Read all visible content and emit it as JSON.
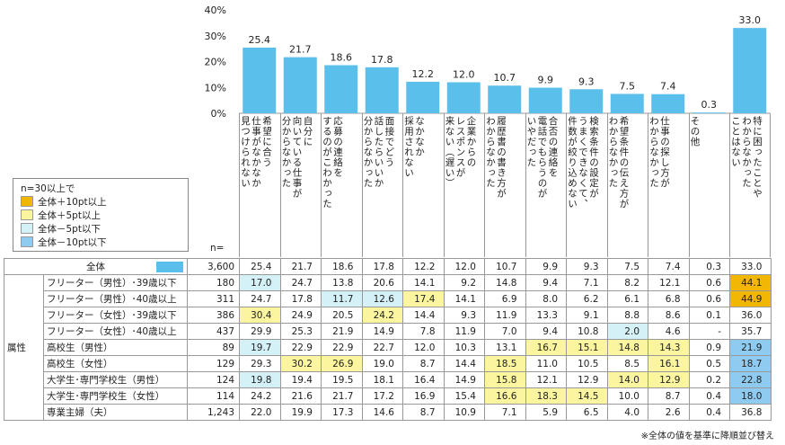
{
  "colors": {
    "bar": "#5BBFEB",
    "plus10": "#F2B705",
    "plus5": "#FBF5A0",
    "minus5": "#D5F1F8",
    "minus10": "#8FCBF1"
  },
  "legend": {
    "title": "n=30以上で",
    "items": [
      {
        "label": "全体＋10pt以上",
        "color_key": "plus10"
      },
      {
        "label": "全体＋5pt以上",
        "color_key": "plus5"
      },
      {
        "label": "全体－5pt以下",
        "color_key": "minus5"
      },
      {
        "label": "全体－10pt以下",
        "color_key": "minus10"
      }
    ]
  },
  "chart_data": {
    "type": "bar",
    "categories": [
      "希望に合う\n仕事がなかなか\n見つけられない",
      "自分に\n向いている仕事が\n分からなかった",
      "応募の連絡を\nするのがこわかった",
      "面接でどう\n話したらいいか\n分からなかった",
      "なかなか\n採用されない",
      "企業からの\nレスポンスが\n来ない（遅い）",
      "履歴書の書き方が\nわからなかった",
      "合否の連絡を\n電話でもらうのが\nいやだった",
      "検索条件の設定が\nうまくできなくて、\n件数が絞り込めない",
      "希望条件の伝え方が\nわからなかった",
      "仕事の探し方が\nわからなかった",
      "その他",
      "特に困ったことや\nわからなかった\nことはない"
    ],
    "values": [
      25.4,
      21.7,
      18.6,
      17.8,
      12.2,
      12.0,
      10.7,
      9.9,
      9.3,
      7.5,
      7.4,
      0.3,
      33.0
    ],
    "ylim": [
      0,
      40
    ],
    "yticks": [
      "0%",
      "10%",
      "20%",
      "30%",
      "40%"
    ],
    "grid": false
  },
  "table": {
    "n_header": "n=",
    "total": {
      "label": "全体",
      "n": "3,600",
      "values": [
        "25.4",
        "21.7",
        "18.6",
        "17.8",
        "12.2",
        "12.0",
        "10.7",
        "9.9",
        "9.3",
        "7.5",
        "7.4",
        "0.3",
        "33.0"
      ]
    },
    "group_label": "属性",
    "rows": [
      {
        "label": "フリーター（男性）･39歳以下",
        "n": "180",
        "values": [
          "17.0",
          "24.7",
          "13.8",
          "20.6",
          "14.1",
          "9.2",
          "14.8",
          "9.4",
          "7.1",
          "8.2",
          "12.1",
          "0.6",
          "44.1"
        ],
        "highlight": [
          "minus5",
          "",
          "",
          "",
          "",
          "",
          "",
          "",
          "",
          "",
          "",
          "",
          "plus10"
        ]
      },
      {
        "label": "フリーター（男性）･40歳以上",
        "n": "311",
        "values": [
          "24.7",
          "17.8",
          "11.7",
          "12.6",
          "17.4",
          "14.1",
          "6.9",
          "8.0",
          "6.2",
          "6.1",
          "6.8",
          "0.6",
          "44.9"
        ],
        "highlight": [
          "",
          "",
          "minus5",
          "minus5",
          "plus5",
          "",
          "",
          "",
          "",
          "",
          "",
          "",
          "plus10"
        ]
      },
      {
        "label": "フリーター（女性）･39歳以下",
        "n": "386",
        "values": [
          "30.4",
          "24.9",
          "20.5",
          "24.2",
          "14.4",
          "9.3",
          "11.9",
          "13.3",
          "9.1",
          "8.8",
          "8.6",
          "0.1",
          "36.0"
        ],
        "highlight": [
          "plus5",
          "",
          "",
          "plus5",
          "",
          "",
          "",
          "",
          "",
          "",
          "",
          "",
          ""
        ]
      },
      {
        "label": "フリーター（女性）･40歳以上",
        "n": "437",
        "values": [
          "29.9",
          "25.3",
          "21.9",
          "14.9",
          "7.8",
          "11.9",
          "7.0",
          "9.4",
          "10.8",
          "2.0",
          "4.6",
          "-",
          "35.7"
        ],
        "highlight": [
          "",
          "",
          "",
          "",
          "",
          "",
          "",
          "",
          "",
          "minus5",
          "",
          "",
          ""
        ]
      },
      {
        "label": "高校生（男性）",
        "n": "89",
        "values": [
          "19.7",
          "22.9",
          "22.9",
          "22.7",
          "12.0",
          "10.3",
          "13.1",
          "16.7",
          "15.1",
          "14.8",
          "14.3",
          "0.9",
          "21.9"
        ],
        "highlight": [
          "minus5",
          "",
          "",
          "",
          "",
          "",
          "",
          "plus5",
          "plus5",
          "plus5",
          "plus5",
          "",
          "minus10"
        ]
      },
      {
        "label": "高校生（女性）",
        "n": "129",
        "values": [
          "29.3",
          "30.2",
          "26.9",
          "19.0",
          "8.7",
          "14.4",
          "18.5",
          "11.0",
          "10.5",
          "8.5",
          "16.1",
          "0.5",
          "18.7"
        ],
        "highlight": [
          "",
          "plus5",
          "plus5",
          "",
          "",
          "",
          "plus5",
          "",
          "",
          "",
          "plus5",
          "",
          "minus10"
        ]
      },
      {
        "label": "大学生･専門学校生（男性）",
        "n": "124",
        "values": [
          "19.8",
          "19.4",
          "19.5",
          "18.1",
          "16.4",
          "14.9",
          "15.8",
          "12.1",
          "12.9",
          "14.0",
          "12.9",
          "0.2",
          "22.8"
        ],
        "highlight": [
          "minus5",
          "",
          "",
          "",
          "",
          "",
          "plus5",
          "",
          "",
          "plus5",
          "plus5",
          "",
          "minus10"
        ]
      },
      {
        "label": "大学生･専門学校生（女性）",
        "n": "114",
        "values": [
          "24.2",
          "21.6",
          "21.7",
          "17.2",
          "16.9",
          "15.4",
          "16.6",
          "18.3",
          "14.5",
          "10.0",
          "8.7",
          "0.4",
          "18.0"
        ],
        "highlight": [
          "",
          "",
          "",
          "",
          "",
          "",
          "plus5",
          "plus5",
          "plus5",
          "",
          "",
          "",
          "minus10"
        ]
      },
      {
        "label": "専業主婦（夫）",
        "n": "1,243",
        "values": [
          "22.0",
          "19.9",
          "17.3",
          "14.6",
          "8.7",
          "10.9",
          "7.1",
          "5.9",
          "6.5",
          "4.0",
          "2.6",
          "0.4",
          "36.8"
        ],
        "highlight": [
          "",
          "",
          "",
          "",
          "",
          "",
          "",
          "",
          "",
          "",
          "",
          "",
          ""
        ]
      }
    ]
  },
  "note": "※全体の値を基準に降順並び替え"
}
